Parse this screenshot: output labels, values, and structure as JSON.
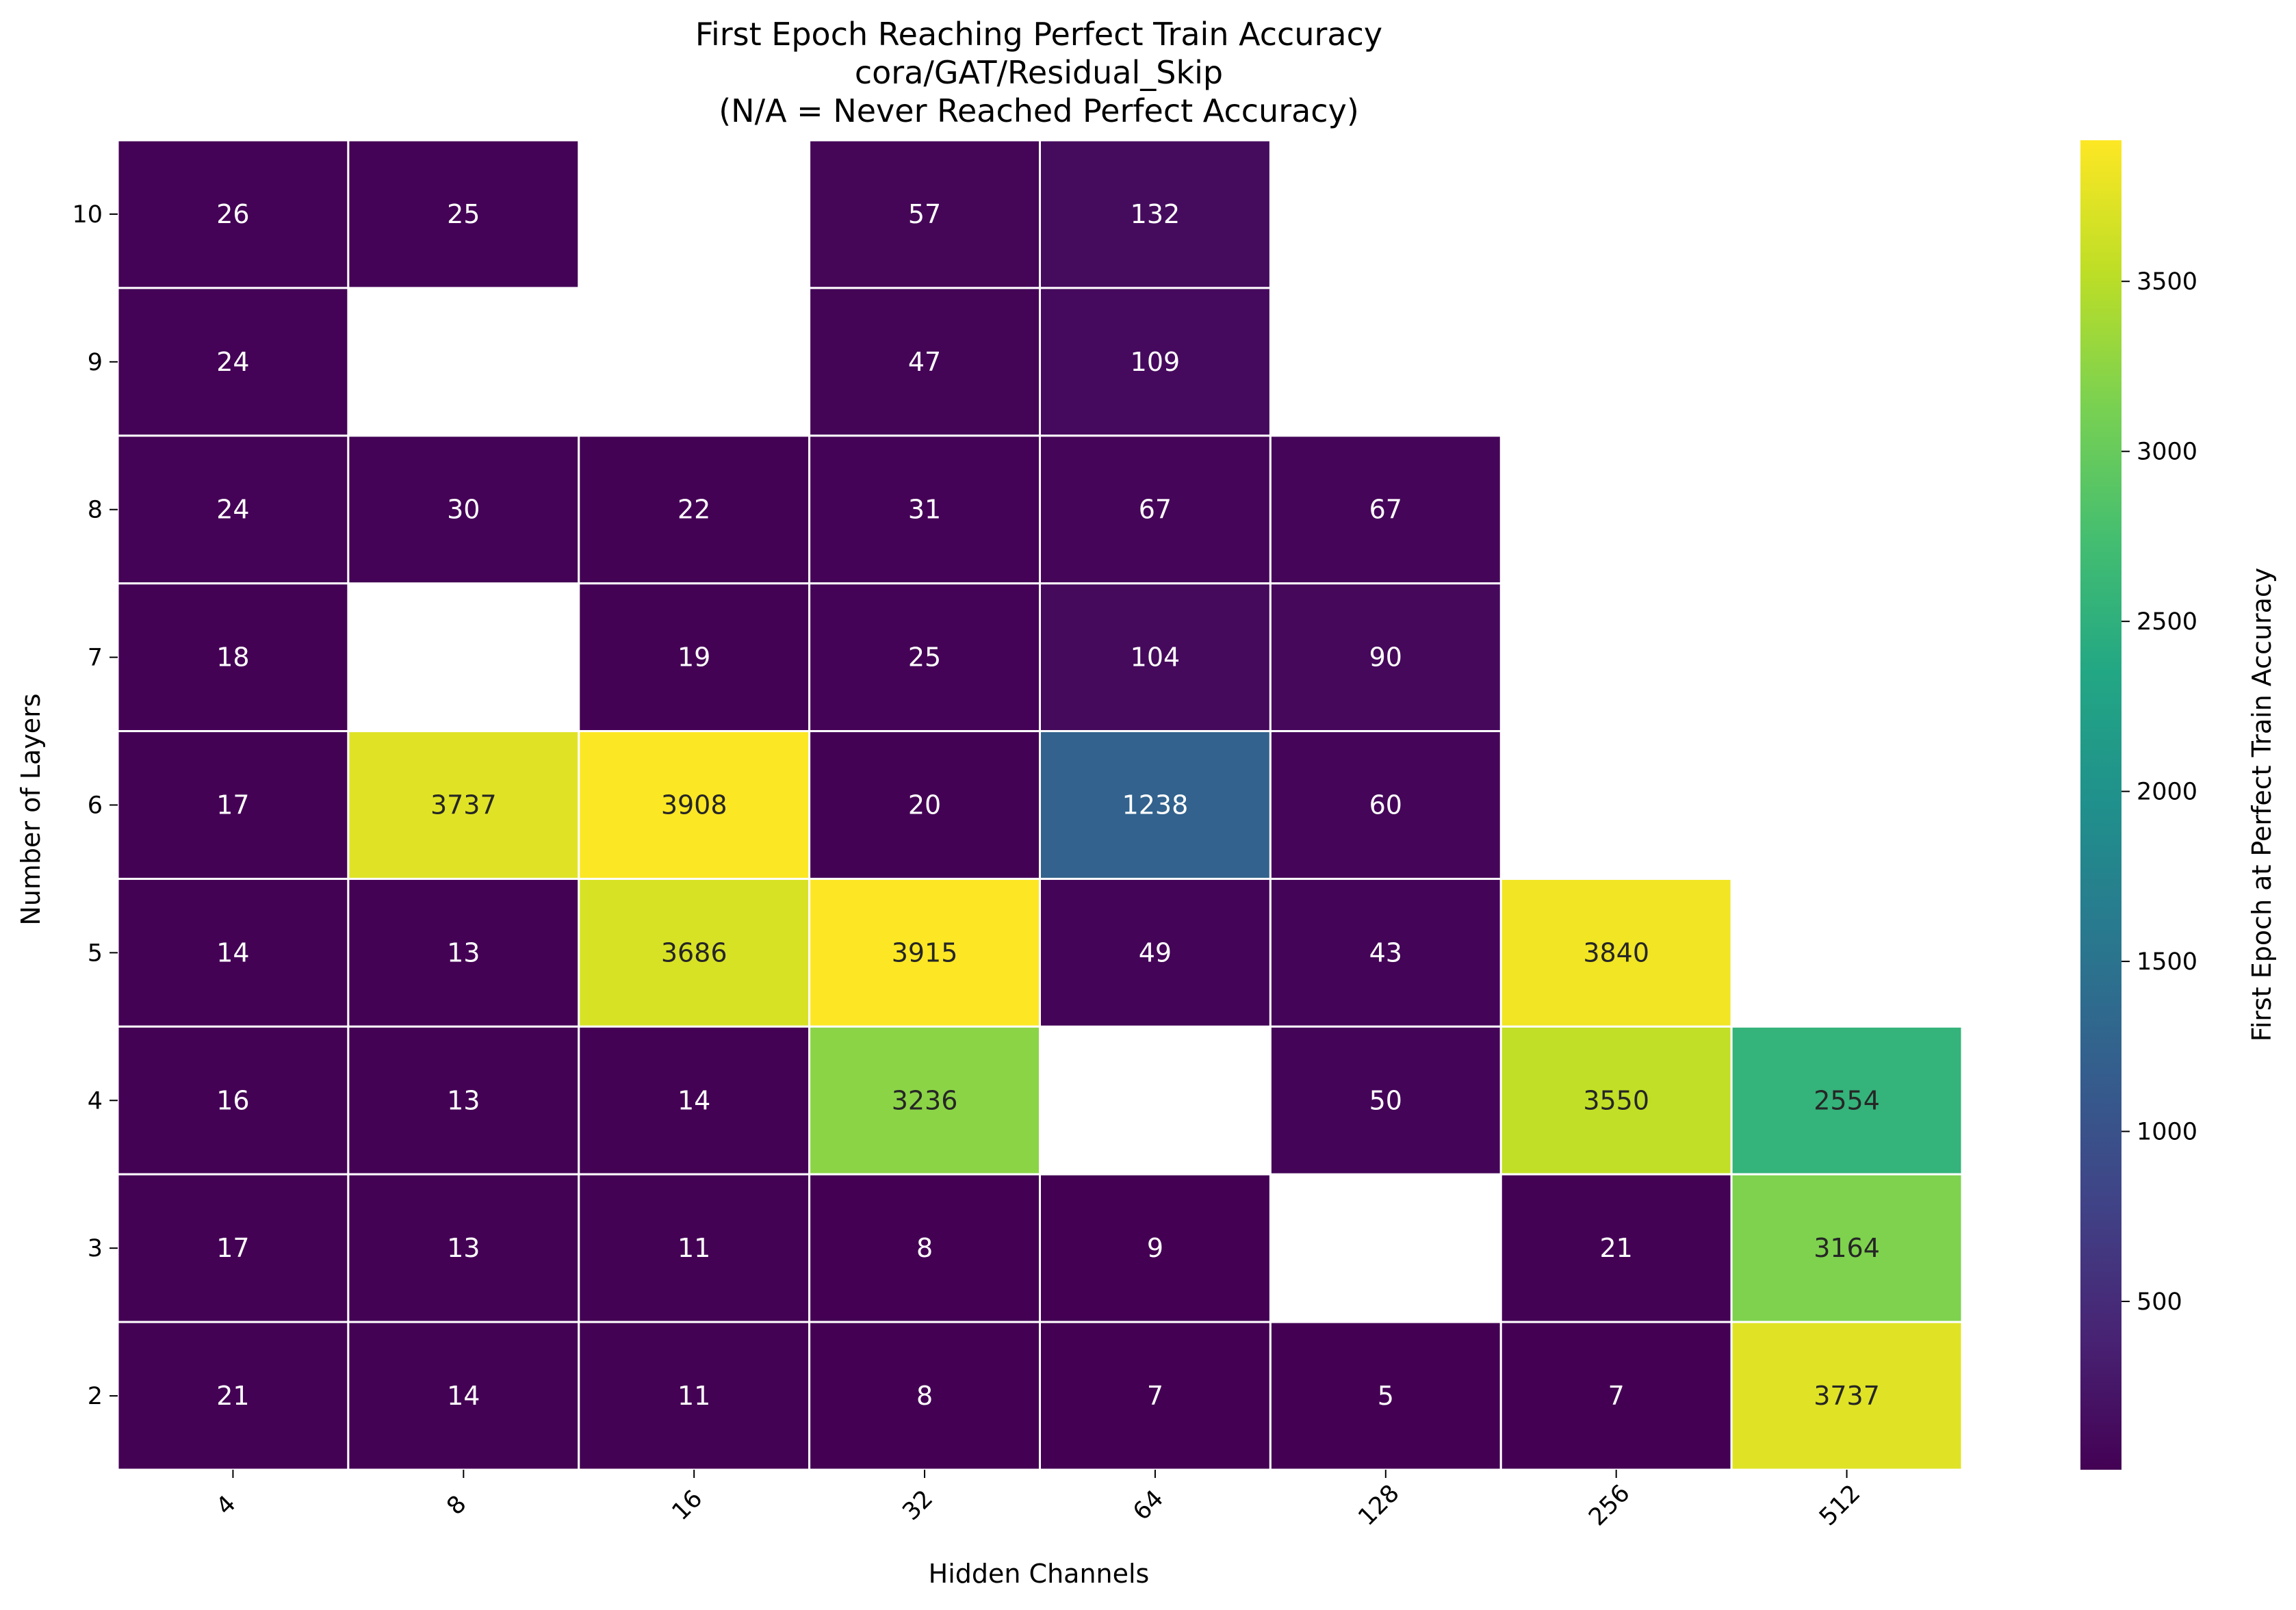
{
  "chart_data": {
    "type": "heatmap",
    "title_lines": [
      "First Epoch Reaching Perfect Train Accuracy",
      "cora/GAT/Residual_Skip",
      "(N/A = Never Reached Perfect Accuracy)"
    ],
    "xlabel": "Hidden Channels",
    "ylabel": "Number of Layers",
    "x_categories": [
      "4",
      "8",
      "16",
      "32",
      "64",
      "128",
      "256",
      "512"
    ],
    "y_categories": [
      "10",
      "9",
      "8",
      "7",
      "6",
      "5",
      "4",
      "3",
      "2"
    ],
    "values": [
      [
        26,
        25,
        null,
        57,
        132,
        null,
        null,
        null
      ],
      [
        24,
        null,
        null,
        47,
        109,
        null,
        null,
        null
      ],
      [
        24,
        30,
        22,
        31,
        67,
        67,
        null,
        null
      ],
      [
        18,
        null,
        19,
        25,
        104,
        90,
        null,
        null
      ],
      [
        17,
        3737,
        3908,
        20,
        1238,
        60,
        null,
        null
      ],
      [
        14,
        13,
        3686,
        3915,
        49,
        43,
        3840,
        null
      ],
      [
        16,
        13,
        14,
        3236,
        null,
        50,
        3550,
        2554
      ],
      [
        17,
        13,
        11,
        8,
        9,
        null,
        21,
        3164
      ],
      [
        21,
        14,
        11,
        8,
        7,
        5,
        7,
        3737
      ]
    ],
    "colormap": "viridis",
    "color_range": [
      5,
      3915
    ],
    "colorbar": {
      "label": "First Epoch at Perfect Train Accuracy",
      "ticks": [
        "500",
        "1000",
        "1500",
        "2000",
        "2500",
        "3000",
        "3500"
      ],
      "tick_values": [
        500,
        1000,
        1500,
        2000,
        2500,
        3000,
        3500
      ]
    },
    "missing_value_color": "#ffffff",
    "cell_border_color": "#ffffff",
    "grid": false
  }
}
